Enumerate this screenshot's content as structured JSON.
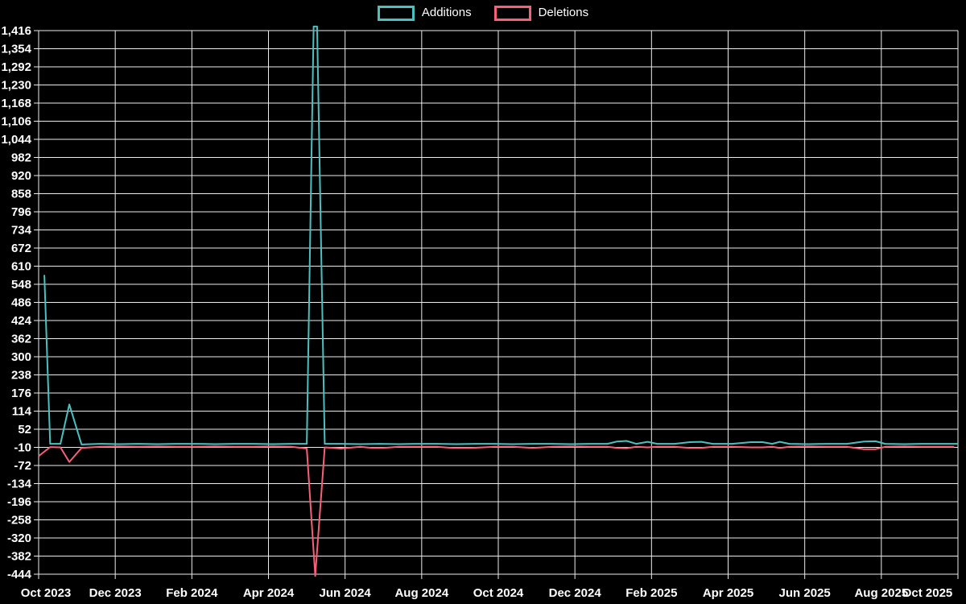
{
  "legend": {
    "additions_label": "Additions",
    "deletions_label": "Deletions"
  },
  "chart_data": {
    "type": "line",
    "title": "",
    "xlabel": "",
    "ylabel": "",
    "background_color": "#000000",
    "grid": true,
    "grid_color": "#ececec",
    "tick_label_color": "#ffffff",
    "legend_position": "top-center",
    "x_unit": "months since Oct 2023",
    "x_range": [
      0,
      24
    ],
    "y_range": [
      -444,
      1416
    ],
    "y_tick_step": 62,
    "y_ticks": [
      1416,
      1354,
      1292,
      1230,
      1168,
      1106,
      1044,
      982,
      920,
      858,
      796,
      734,
      672,
      610,
      548,
      486,
      424,
      362,
      300,
      238,
      176,
      114,
      52,
      -10,
      -72,
      -134,
      -196,
      -258,
      -320,
      -382,
      -444
    ],
    "x_tick_labels": [
      "Oct 2023",
      "Dec 2023",
      "Feb 2024",
      "Apr 2024",
      "Jun 2024",
      "Aug 2024",
      "Oct 2024",
      "Dec 2024",
      "Feb 2025",
      "Apr 2025",
      "Jun 2025",
      "Aug 2025",
      "Oct 2025"
    ],
    "series": [
      {
        "name": "Additions",
        "color": "#4bc0c0",
        "points": [
          [
            0.15,
            580
          ],
          [
            0.3,
            2
          ],
          [
            0.57,
            2
          ],
          [
            0.8,
            137
          ],
          [
            1.12,
            0
          ],
          [
            1.6,
            2
          ],
          [
            2.1,
            1
          ],
          [
            2.6,
            2
          ],
          [
            3.1,
            1
          ],
          [
            3.6,
            2
          ],
          [
            4.1,
            2
          ],
          [
            4.6,
            1
          ],
          [
            5.1,
            2
          ],
          [
            5.6,
            2
          ],
          [
            6.1,
            1
          ],
          [
            6.6,
            2
          ],
          [
            7.0,
            2
          ],
          [
            7.18,
            1430
          ],
          [
            7.27,
            1430
          ],
          [
            7.47,
            2
          ],
          [
            7.9,
            2
          ],
          [
            8.4,
            1
          ],
          [
            8.9,
            2
          ],
          [
            9.4,
            1
          ],
          [
            9.9,
            2
          ],
          [
            10.4,
            2
          ],
          [
            10.9,
            1
          ],
          [
            11.4,
            2
          ],
          [
            11.9,
            2
          ],
          [
            12.4,
            1
          ],
          [
            12.9,
            2
          ],
          [
            13.4,
            2
          ],
          [
            13.9,
            1
          ],
          [
            14.4,
            2
          ],
          [
            14.85,
            2
          ],
          [
            15.1,
            10
          ],
          [
            15.35,
            12
          ],
          [
            15.6,
            2
          ],
          [
            15.9,
            9
          ],
          [
            16.15,
            2
          ],
          [
            16.6,
            2
          ],
          [
            17.0,
            8
          ],
          [
            17.3,
            9
          ],
          [
            17.6,
            2
          ],
          [
            18.1,
            2
          ],
          [
            18.6,
            8
          ],
          [
            18.9,
            8
          ],
          [
            19.15,
            2
          ],
          [
            19.35,
            9
          ],
          [
            19.6,
            2
          ],
          [
            20.1,
            1
          ],
          [
            20.6,
            2
          ],
          [
            21.1,
            2
          ],
          [
            21.55,
            10
          ],
          [
            21.85,
            11
          ],
          [
            22.1,
            2
          ],
          [
            22.6,
            1
          ],
          [
            23.1,
            2
          ],
          [
            23.6,
            2
          ],
          [
            24.0,
            2
          ]
        ]
      },
      {
        "name": "Deletions",
        "color": "#f85f78",
        "points": [
          [
            0.0,
            -40
          ],
          [
            0.3,
            -9
          ],
          [
            0.57,
            -10
          ],
          [
            0.8,
            -60
          ],
          [
            1.12,
            -12
          ],
          [
            1.6,
            -8
          ],
          [
            2.1,
            -7
          ],
          [
            2.6,
            -8
          ],
          [
            3.1,
            -7
          ],
          [
            3.6,
            -8
          ],
          [
            4.1,
            -8
          ],
          [
            4.6,
            -7
          ],
          [
            5.1,
            -8
          ],
          [
            5.6,
            -8
          ],
          [
            6.1,
            -7
          ],
          [
            6.6,
            -8
          ],
          [
            7.0,
            -14
          ],
          [
            7.22,
            -450
          ],
          [
            7.47,
            -10
          ],
          [
            7.9,
            -14
          ],
          [
            8.4,
            -8
          ],
          [
            8.7,
            -12
          ],
          [
            9.0,
            -12
          ],
          [
            9.4,
            -8
          ],
          [
            9.9,
            -8
          ],
          [
            10.4,
            -8
          ],
          [
            10.8,
            -12
          ],
          [
            11.3,
            -12
          ],
          [
            11.9,
            -8
          ],
          [
            12.4,
            -8
          ],
          [
            12.9,
            -12
          ],
          [
            13.4,
            -8
          ],
          [
            13.9,
            -7
          ],
          [
            14.4,
            -8
          ],
          [
            14.85,
            -8
          ],
          [
            15.1,
            -12
          ],
          [
            15.35,
            -13
          ],
          [
            15.6,
            -8
          ],
          [
            15.9,
            -10
          ],
          [
            16.15,
            -8
          ],
          [
            16.6,
            -8
          ],
          [
            17.0,
            -12
          ],
          [
            17.3,
            -12
          ],
          [
            17.6,
            -8
          ],
          [
            18.1,
            -8
          ],
          [
            18.6,
            -10
          ],
          [
            18.9,
            -10
          ],
          [
            19.15,
            -8
          ],
          [
            19.35,
            -12
          ],
          [
            19.6,
            -8
          ],
          [
            20.1,
            -7
          ],
          [
            20.6,
            -8
          ],
          [
            21.1,
            -8
          ],
          [
            21.55,
            -16
          ],
          [
            21.85,
            -16
          ],
          [
            22.1,
            -8
          ],
          [
            22.6,
            -7
          ],
          [
            23.1,
            -8
          ],
          [
            23.55,
            -8
          ],
          [
            23.9,
            -8
          ]
        ]
      }
    ]
  }
}
